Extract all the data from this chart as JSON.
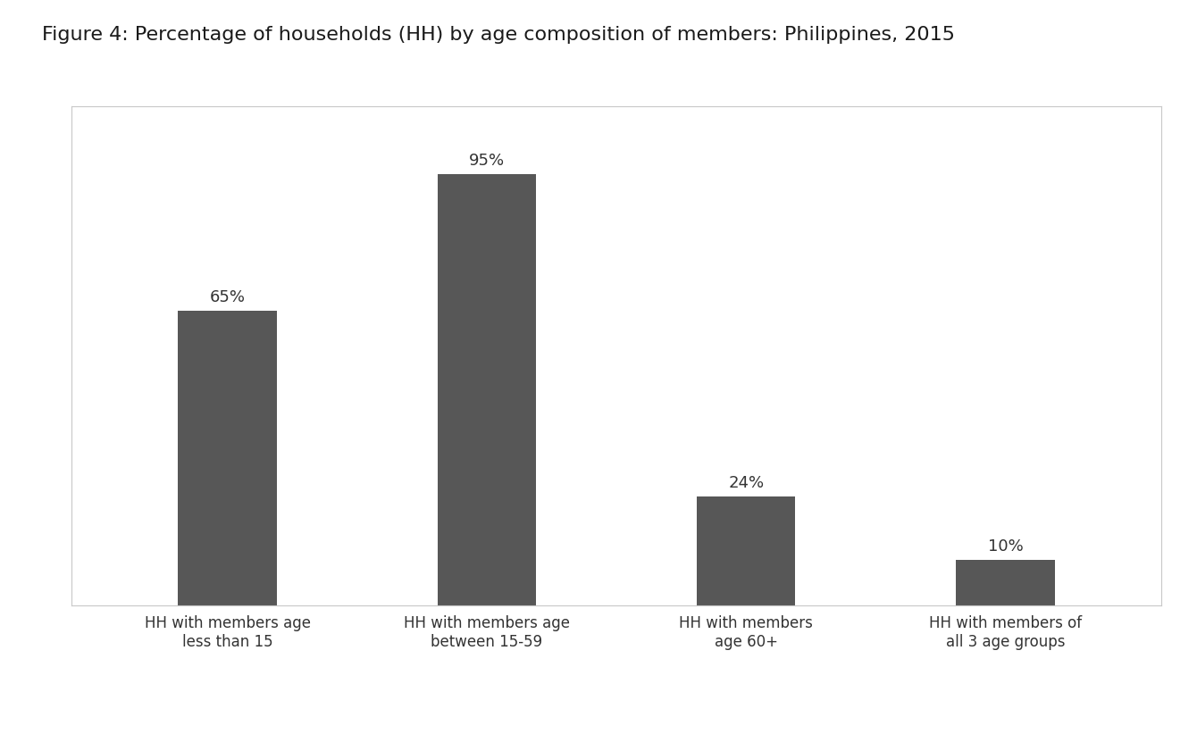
{
  "title": "Figure 4: Percentage of households (HH) by age composition of members: Philippines, 2015",
  "categories": [
    "HH with members age\nless than 15",
    "HH with members age\nbetween 15-59",
    "HH with members\nage 60+",
    "HH with members of\nall 3 age groups"
  ],
  "values": [
    65,
    95,
    24,
    10
  ],
  "labels": [
    "65%",
    "95%",
    "24%",
    "10%"
  ],
  "bar_color": "#575757",
  "background_color": "#ffffff",
  "ylim": [
    0,
    110
  ],
  "bar_width": 0.38,
  "title_fontsize": 16,
  "label_fontsize": 13,
  "tick_fontsize": 12,
  "title_color": "#1a1a1a",
  "label_color": "#333333",
  "tick_label_color": "#333333",
  "spine_color": "#c8c8c8"
}
